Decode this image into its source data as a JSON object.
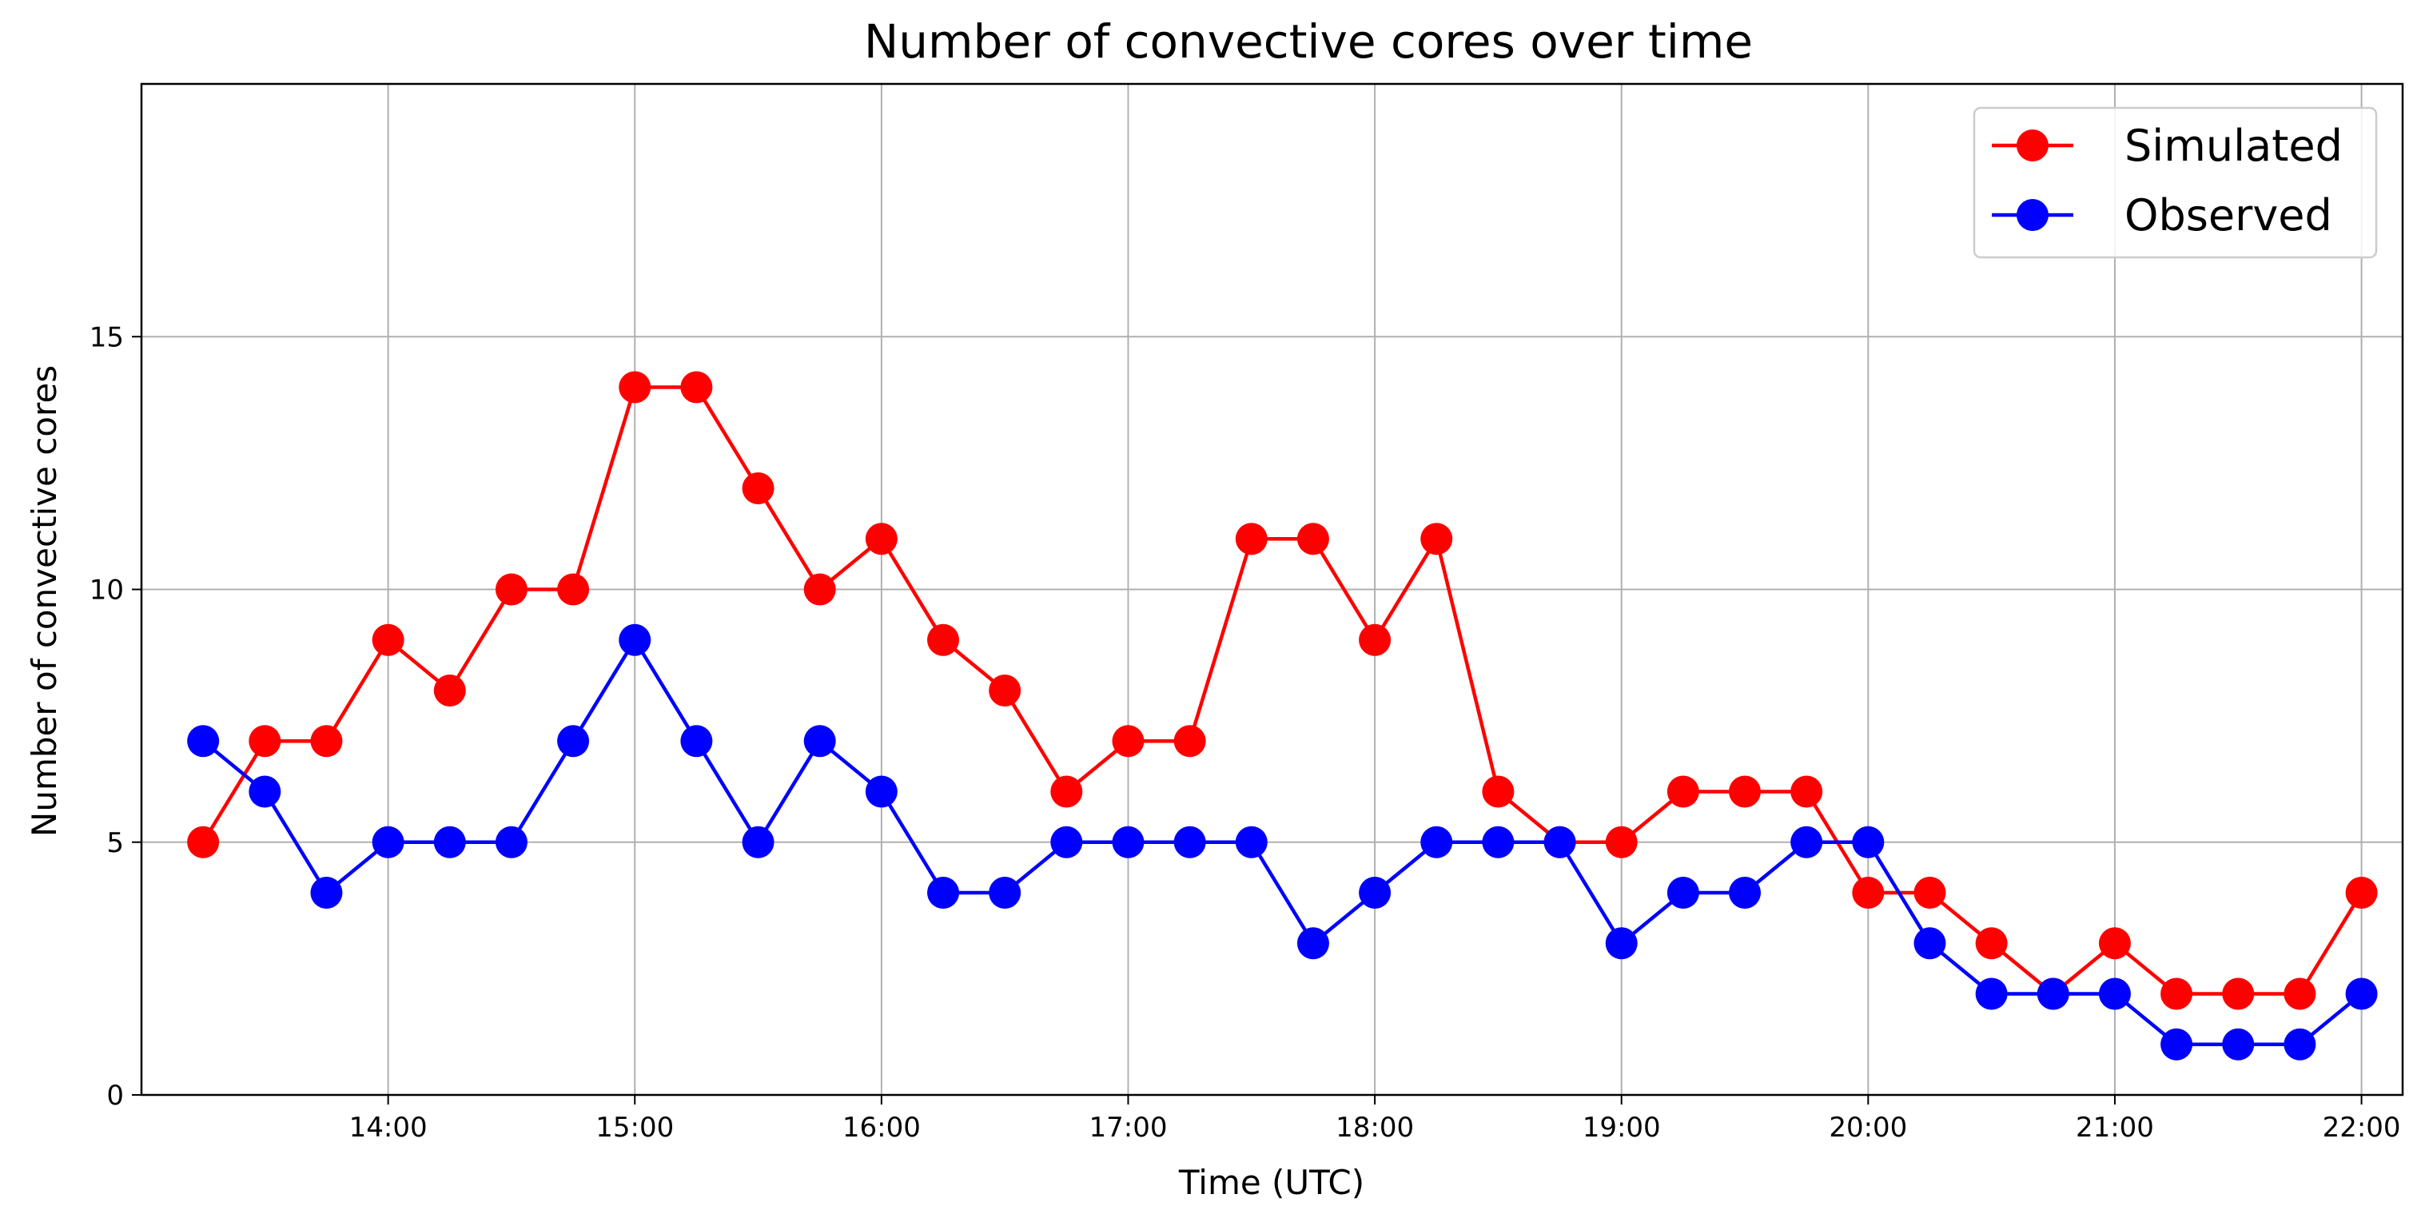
{
  "chart_data": {
    "type": "line",
    "title": "Number of convective cores over time",
    "xlabel": "Time (UTC)",
    "ylabel": "Number of convective cores",
    "x": [
      "13:15",
      "13:30",
      "13:45",
      "14:00",
      "14:15",
      "14:30",
      "14:45",
      "15:00",
      "15:15",
      "15:30",
      "15:45",
      "16:00",
      "16:15",
      "16:30",
      "16:45",
      "17:00",
      "17:15",
      "17:30",
      "17:45",
      "18:00",
      "18:15",
      "18:30",
      "18:45",
      "19:00",
      "19:15",
      "19:30",
      "19:45",
      "20:00",
      "20:15",
      "20:30",
      "20:45",
      "21:00",
      "21:15",
      "21:30",
      "21:45",
      "22:00"
    ],
    "xticks": [
      "14:00",
      "15:00",
      "16:00",
      "17:00",
      "18:00",
      "19:00",
      "20:00",
      "21:00",
      "22:00"
    ],
    "xlim": [
      "13:00",
      "22:10"
    ],
    "yticks": [
      0,
      5,
      10,
      15
    ],
    "ylim": [
      0,
      20
    ],
    "grid": true,
    "legend_position": "top-right",
    "series": [
      {
        "name": "Simulated",
        "color": "#ff0000",
        "marker": "circle",
        "values": [
          5,
          7,
          7,
          9,
          8,
          10,
          10,
          14,
          14,
          12,
          10,
          11,
          9,
          8,
          6,
          7,
          7,
          11,
          11,
          9,
          11,
          6,
          5,
          5,
          6,
          6,
          6,
          4,
          4,
          3,
          2,
          3,
          2,
          2,
          2,
          4
        ]
      },
      {
        "name": "Observed",
        "color": "#0000ff",
        "marker": "circle",
        "values": [
          7,
          6,
          4,
          5,
          5,
          5,
          7,
          9,
          7,
          5,
          7,
          6,
          4,
          4,
          5,
          5,
          5,
          5,
          3,
          4,
          5,
          5,
          5,
          3,
          4,
          4,
          5,
          5,
          3,
          2,
          2,
          2,
          1,
          1,
          1,
          2
        ]
      }
    ]
  }
}
